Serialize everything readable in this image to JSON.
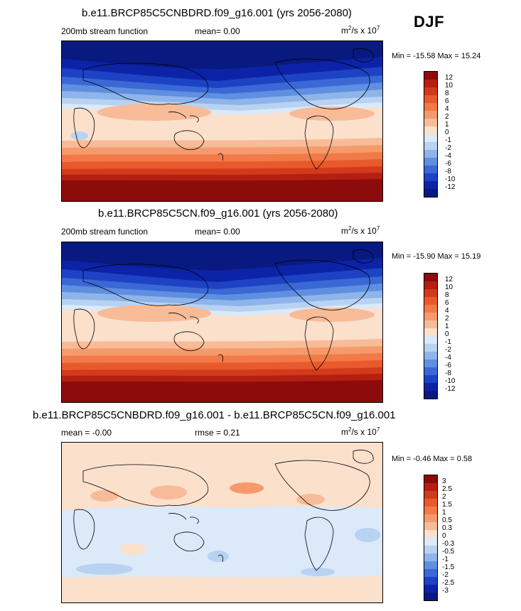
{
  "season": "DJF",
  "panels": [
    {
      "title": "b.e11.BRCP85C5CNBDRD.f09_g16.001 (yrs 2056-2080)",
      "left_label": "200mb stream function",
      "center_label": "mean=  0.00",
      "units_base": "m",
      "units_exp1": "2",
      "units_mid": "/s x 10",
      "units_exp2": "7",
      "minmax": "Min = -15.58 Max =  15.24",
      "colorbar_labels": [
        "12",
        "10",
        "8",
        "6",
        "4",
        "2",
        "1",
        "0",
        "-1",
        "-2",
        "-4",
        "-6",
        "-8",
        "-10",
        "-12"
      ]
    },
    {
      "title": "b.e11.BRCP85C5CN.f09_g16.001 (yrs 2056-2080)",
      "left_label": "200mb stream function",
      "center_label": "mean=  0.00",
      "units_base": "m",
      "units_exp1": "2",
      "units_mid": "/s x 10",
      "units_exp2": "7",
      "minmax": "Min = -15.90 Max =  15.19",
      "colorbar_labels": [
        "12",
        "10",
        "8",
        "6",
        "4",
        "2",
        "1",
        "0",
        "-1",
        "-2",
        "-4",
        "-6",
        "-8",
        "-10",
        "-12"
      ]
    },
    {
      "title": "b.e11.BRCP85C5CNBDRD.f09_g16.001 - b.e11.BRCP85C5CN.f09_g16.001",
      "left_label": "mean = -0.00",
      "center_label": "rmse =  0.21",
      "units_base": "m",
      "units_exp1": "2",
      "units_mid": "/s x 10",
      "units_exp2": "7",
      "minmax": "Min = -0.46 Max =  0.58",
      "colorbar_labels": [
        "3",
        "2.5",
        "2",
        "1.5",
        "1",
        "0.5",
        "0.3",
        "0",
        "-0.3",
        "-0.5",
        "-1",
        "-1.5",
        "-2",
        "-2.5",
        "-3"
      ]
    }
  ],
  "colors": {
    "palette": [
      "#8c0b0b",
      "#b51f12",
      "#d23a1c",
      "#e85a2c",
      "#f27a48",
      "#f69a6c",
      "#f8bb98",
      "#fbe0cc",
      "#dbe9f8",
      "#b8d2f2",
      "#8fb4ea",
      "#5f8fe0",
      "#3a69d6",
      "#1d43c4",
      "#0c23a8",
      "#081a80"
    ],
    "coast": "#000000"
  }
}
